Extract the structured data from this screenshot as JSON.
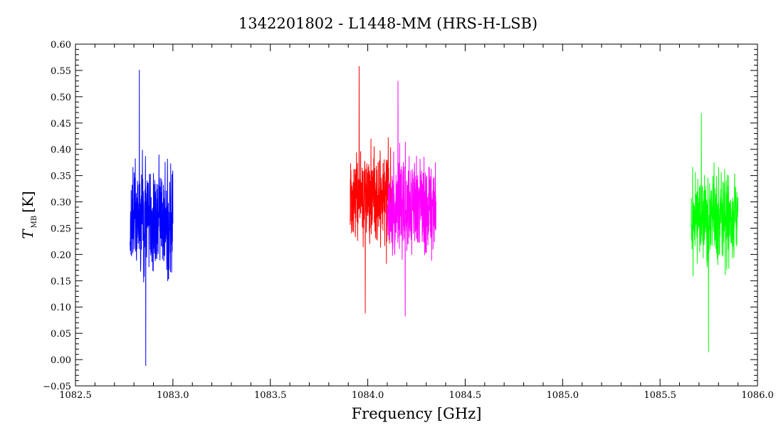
{
  "chart_data": {
    "type": "line",
    "title": "1342201802 - L1448-MM (HRS-H-LSB)",
    "xlabel": "Frequency [GHz]",
    "ylabel": {
      "symbol": "T",
      "subscript": "MB",
      "unit": "[K]"
    },
    "xlim": [
      1082.5,
      1086.0
    ],
    "ylim": [
      -0.05,
      0.6
    ],
    "x_ticks": [
      "1082.5",
      "1083.0",
      "1083.5",
      "1084.0",
      "1084.5",
      "1085.0",
      "1085.5",
      "1086.0"
    ],
    "y_ticks": [
      "−0.05",
      "0.00",
      "0.05",
      "0.10",
      "0.15",
      "0.20",
      "0.25",
      "0.30",
      "0.35",
      "0.40",
      "0.45",
      "0.50",
      "0.55",
      "0.60"
    ],
    "grid": false,
    "legend": "none",
    "series": [
      {
        "color": "#0000ff",
        "x_range": [
          1082.78,
          1083.0
        ],
        "mean": 0.27,
        "min": -0.012,
        "max": 0.551
      },
      {
        "color": "#ff0000",
        "x_range": [
          1083.91,
          1084.12
        ],
        "mean": 0.31,
        "min": 0.088,
        "max": 0.558
      },
      {
        "color": "#ff00ff",
        "x_range": [
          1084.1,
          1084.35
        ],
        "mean": 0.29,
        "min": 0.082,
        "max": 0.53
      },
      {
        "color": "#00ff00",
        "x_range": [
          1085.66,
          1085.9
        ],
        "mean": 0.27,
        "min": 0.014,
        "max": 0.469
      }
    ]
  }
}
